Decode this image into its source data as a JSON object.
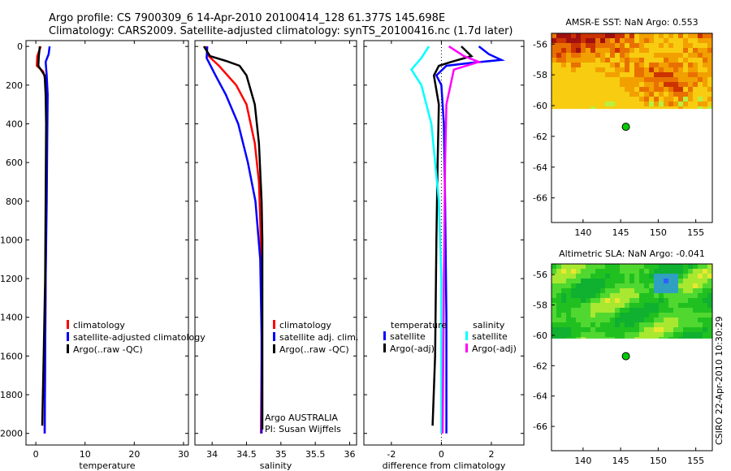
{
  "header": {
    "line1": "Argo profile: CS 7900309_6 14-Apr-2010 20100414_128 61.377S 145.698E",
    "line2": "Climatology: CARS2009. Satellite-adjusted climatology: synTS_20100416.nc (1.7d later)"
  },
  "side_stamp": "CSIRO 22-Apr-2010 10:30:29",
  "colors": {
    "red": "#ff0000",
    "blue": "#0000ff",
    "black": "#000000",
    "cyan": "#00ffff",
    "magenta": "#ff00ff",
    "green": "#00cc00"
  },
  "chart_data": [
    {
      "id": "temperature",
      "type": "line",
      "xlabel": "temperature",
      "ylabel": "",
      "xlim": [
        -2,
        31
      ],
      "ylim": [
        2060,
        -30
      ],
      "xticks": [
        0,
        10,
        20,
        30
      ],
      "yticks": [
        0,
        200,
        400,
        600,
        800,
        1000,
        1200,
        1400,
        1600,
        1800,
        2000
      ],
      "legend": [
        "climatology",
        "satellite-adjusted climatology",
        "Argo(..raw -QC)"
      ],
      "series": [
        {
          "name": "climatology",
          "color": "red",
          "points": [
            [
              1.0,
              0
            ],
            [
              0.3,
              50
            ],
            [
              0.2,
              100
            ],
            [
              1.5,
              130
            ],
            [
              2.0,
              180
            ],
            [
              2.1,
              260
            ],
            [
              2.2,
              400
            ],
            [
              2.1,
              800
            ],
            [
              2.0,
              1200
            ],
            [
              1.9,
              1600
            ],
            [
              1.8,
              2000
            ]
          ]
        },
        {
          "name": "satellite-adjusted climatology",
          "color": "blue",
          "points": [
            [
              2.8,
              0
            ],
            [
              2.6,
              40
            ],
            [
              2.0,
              80
            ],
            [
              2.2,
              150
            ],
            [
              2.4,
              250
            ],
            [
              2.3,
              500
            ],
            [
              2.2,
              800
            ],
            [
              2.0,
              1200
            ],
            [
              1.9,
              1600
            ],
            [
              1.8,
              2000
            ]
          ]
        },
        {
          "name": "Argo(..raw -QC)",
          "color": "black",
          "points": [
            [
              0.8,
              0
            ],
            [
              0.6,
              50
            ],
            [
              0.5,
              100
            ],
            [
              1.8,
              150
            ],
            [
              2.0,
              250
            ],
            [
              2.1,
              400
            ],
            [
              2.0,
              800
            ],
            [
              1.9,
              1200
            ],
            [
              1.6,
              1600
            ],
            [
              1.3,
              1960
            ]
          ]
        }
      ]
    },
    {
      "id": "salinity",
      "type": "line",
      "xlabel": "salinity",
      "xlim": [
        33.75,
        36.1
      ],
      "ylim": [
        2060,
        -30
      ],
      "xticks": [
        34,
        34.5,
        35,
        35.5,
        36
      ],
      "legend": [
        "climatology",
        "satellite adj. clim.",
        "Argo(..raw -QC)"
      ],
      "annotation": [
        "Argo AUSTRALIA",
        "PI: Susan Wijffels"
      ],
      "series": [
        {
          "name": "climatology",
          "color": "red",
          "points": [
            [
              33.9,
              0
            ],
            [
              33.95,
              50
            ],
            [
              34.1,
              100
            ],
            [
              34.35,
              200
            ],
            [
              34.5,
              300
            ],
            [
              34.62,
              500
            ],
            [
              34.68,
              700
            ],
            [
              34.7,
              900
            ],
            [
              34.72,
              1200
            ],
            [
              34.72,
              1600
            ],
            [
              34.71,
              2000
            ]
          ]
        },
        {
          "name": "satellite adj. clim.",
          "color": "blue",
          "points": [
            [
              33.93,
              0
            ],
            [
              33.92,
              60
            ],
            [
              34.05,
              150
            ],
            [
              34.2,
              250
            ],
            [
              34.38,
              400
            ],
            [
              34.52,
              600
            ],
            [
              34.63,
              800
            ],
            [
              34.7,
              1100
            ],
            [
              34.72,
              1500
            ],
            [
              34.72,
              2000
            ]
          ]
        },
        {
          "name": "Argo(..raw -QC)",
          "color": "black",
          "points": [
            [
              33.88,
              0
            ],
            [
              33.97,
              50
            ],
            [
              34.2,
              75
            ],
            [
              34.4,
              100
            ],
            [
              34.5,
              150
            ],
            [
              34.62,
              300
            ],
            [
              34.68,
              500
            ],
            [
              34.72,
              800
            ],
            [
              34.73,
              1000
            ],
            [
              34.73,
              1600
            ],
            [
              34.73,
              1980
            ]
          ]
        }
      ]
    },
    {
      "id": "difference",
      "type": "line",
      "xlabel": "difference from climatology",
      "xlim": [
        -3.1,
        3.3
      ],
      "ylim": [
        2060,
        -30
      ],
      "xticks": [
        -2,
        0,
        2
      ],
      "legend_titles": [
        "temperature",
        "salinity"
      ],
      "legend": [
        "satellite",
        "Argo(-adj)",
        "satellite",
        "Argo(-adj)"
      ],
      "series": [
        {
          "name": "temperature satellite",
          "color": "blue",
          "points": [
            [
              1.5,
              0
            ],
            [
              1.9,
              40
            ],
            [
              2.4,
              70
            ],
            [
              1.2,
              85
            ],
            [
              0.2,
              100
            ],
            [
              -0.2,
              150
            ],
            [
              0,
              200
            ],
            [
              0.1,
              400
            ],
            [
              0.15,
              800
            ],
            [
              0.2,
              1400
            ],
            [
              0.2,
              2000
            ]
          ]
        },
        {
          "name": "temperature Argo(-adj)",
          "color": "black",
          "points": [
            [
              0.8,
              0
            ],
            [
              1.2,
              50
            ],
            [
              0.4,
              80
            ],
            [
              -0.1,
              100
            ],
            [
              -0.3,
              150
            ],
            [
              -0.1,
              300
            ],
            [
              -0.15,
              600
            ],
            [
              -0.2,
              1000
            ],
            [
              -0.25,
              1600
            ],
            [
              -0.35,
              1960
            ]
          ]
        },
        {
          "name": "salinity satellite",
          "color": "cyan",
          "points": [
            [
              -0.5,
              0
            ],
            [
              -0.8,
              60
            ],
            [
              -1.2,
              120
            ],
            [
              -0.8,
              200
            ],
            [
              -0.4,
              400
            ],
            [
              -0.1,
              800
            ],
            [
              0,
              1200
            ],
            [
              0,
              2000
            ]
          ]
        },
        {
          "name": "salinity Argo(-adj)",
          "color": "magenta",
          "points": [
            [
              0.3,
              0
            ],
            [
              0.9,
              50
            ],
            [
              1.5,
              80
            ],
            [
              0.5,
              120
            ],
            [
              0.2,
              300
            ],
            [
              0.15,
              600
            ],
            [
              0.1,
              1200
            ],
            [
              0.05,
              2000
            ]
          ]
        }
      ]
    },
    {
      "id": "sst-map",
      "type": "heatmap",
      "title": "AMSR-E SST: NaN Argo: 0.553",
      "xlim": [
        135.8,
        157.2
      ],
      "ylim": [
        -67.6,
        -55.3
      ],
      "xticks": [
        140,
        145,
        150,
        155
      ],
      "yticks": [
        -56,
        -58,
        -60,
        -62,
        -64,
        -66
      ],
      "data_lat_range": [
        -60.2,
        -55.3
      ],
      "marker": {
        "lon": 145.698,
        "lat": -61.377
      }
    },
    {
      "id": "sla-map",
      "type": "heatmap",
      "title": "Altimetric SLA: NaN Argo: -0.041",
      "xlim": [
        135.8,
        157.2
      ],
      "ylim": [
        -67.6,
        -55.3
      ],
      "xticks": [
        140,
        145,
        150,
        155
      ],
      "yticks": [
        -56,
        -58,
        -60,
        -62,
        -64,
        -66
      ],
      "data_lat_range": [
        -60.2,
        -55.3
      ],
      "marker": {
        "lon": 145.698,
        "lat": -61.377
      }
    }
  ]
}
